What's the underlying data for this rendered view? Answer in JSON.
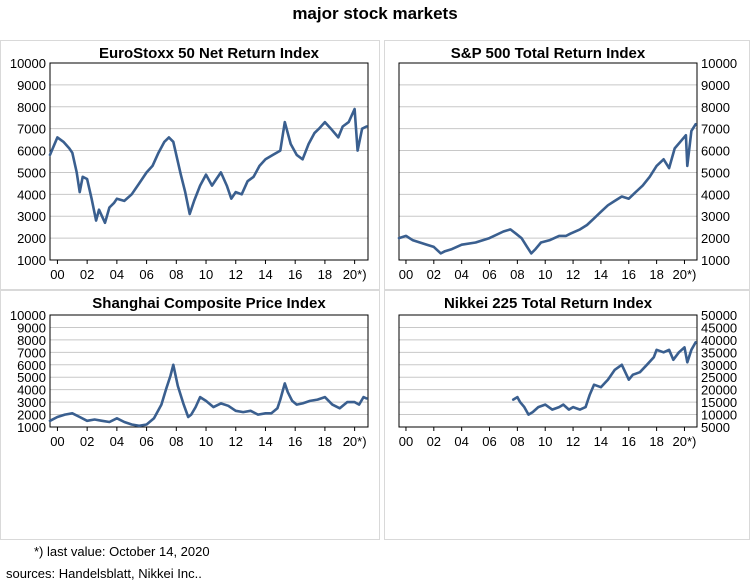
{
  "title": "major stock markets",
  "footnote": "*) last value: October 14, 2020",
  "sources": "sources: Handelsblatt, Nikkei Inc..",
  "line_color": "#3a5f8f",
  "chart_data": [
    {
      "type": "line",
      "title": "EuroStoxx 50 Net Return Index",
      "xlabel": "",
      "ylabel": "",
      "xlim": [
        1999.5,
        2020.9
      ],
      "ylim": [
        1000,
        10000
      ],
      "yticks": [
        1000,
        2000,
        3000,
        4000,
        5000,
        6000,
        7000,
        8000,
        9000,
        10000
      ],
      "xtick_labels": [
        "00",
        "02",
        "04",
        "06",
        "08",
        "10",
        "12",
        "14",
        "16",
        "18",
        "20*)"
      ],
      "xtick_values": [
        2000,
        2002,
        2004,
        2006,
        2008,
        2010,
        2012,
        2014,
        2016,
        2018,
        2020
      ],
      "y_axis_side": "left",
      "grid": true,
      "series": [
        {
          "x": [
            1999.5,
            2000.0,
            2000.4,
            2000.8,
            2001.0,
            2001.3,
            2001.5,
            2001.7,
            2002.0,
            2002.3,
            2002.6,
            2002.8,
            2003.2,
            2003.5,
            2003.8,
            2004.0,
            2004.5,
            2005.0,
            2005.5,
            2006.0,
            2006.4,
            2006.8,
            2007.2,
            2007.5,
            2007.8,
            2008.0,
            2008.3,
            2008.6,
            2008.9,
            2009.2,
            2009.6,
            2010.0,
            2010.4,
            2010.7,
            2011.0,
            2011.4,
            2011.7,
            2012.0,
            2012.4,
            2012.8,
            2013.2,
            2013.6,
            2014.0,
            2014.5,
            2015.0,
            2015.3,
            2015.7,
            2016.1,
            2016.5,
            2016.9,
            2017.3,
            2017.6,
            2018.0,
            2018.4,
            2018.9,
            2019.2,
            2019.6,
            2020.0,
            2020.2,
            2020.5,
            2020.8
          ],
          "y": [
            5800,
            6600,
            6400,
            6100,
            5900,
            5000,
            4100,
            4800,
            4700,
            3800,
            2800,
            3300,
            2700,
            3400,
            3600,
            3800,
            3700,
            4000,
            4500,
            5000,
            5300,
            5900,
            6400,
            6600,
            6400,
            5800,
            4900,
            4100,
            3100,
            3700,
            4400,
            4900,
            4400,
            4700,
            5000,
            4400,
            3800,
            4100,
            4000,
            4600,
            4800,
            5300,
            5600,
            5800,
            6000,
            7300,
            6300,
            5800,
            5600,
            6300,
            6800,
            7000,
            7300,
            7000,
            6600,
            7100,
            7300,
            7900,
            6000,
            7000,
            7100
          ]
        }
      ]
    },
    {
      "type": "line",
      "title": "S&P 500 Total Return Index",
      "xlabel": "",
      "ylabel": "",
      "xlim": [
        1999.5,
        2020.9
      ],
      "ylim": [
        1000,
        10000
      ],
      "yticks": [
        1000,
        2000,
        3000,
        4000,
        5000,
        6000,
        7000,
        8000,
        9000,
        10000
      ],
      "xtick_labels": [
        "00",
        "02",
        "04",
        "06",
        "08",
        "10",
        "12",
        "14",
        "16",
        "18",
        "20*)"
      ],
      "xtick_values": [
        2000,
        2002,
        2004,
        2006,
        2008,
        2010,
        2012,
        2014,
        2016,
        2018,
        2020
      ],
      "y_axis_side": "right",
      "grid": true,
      "series": [
        {
          "x": [
            1999.5,
            2000.0,
            2000.5,
            2001.0,
            2001.5,
            2002.0,
            2002.5,
            2002.8,
            2003.3,
            2004.0,
            2005.0,
            2006.0,
            2007.0,
            2007.5,
            2007.9,
            2008.3,
            2008.7,
            2009.0,
            2009.3,
            2009.7,
            2010.3,
            2011.0,
            2011.5,
            2011.8,
            2012.5,
            2013.0,
            2013.5,
            2014.0,
            2014.5,
            2015.0,
            2015.5,
            2016.0,
            2016.5,
            2017.0,
            2017.5,
            2018.0,
            2018.5,
            2018.9,
            2019.3,
            2019.7,
            2020.1,
            2020.2,
            2020.5,
            2020.8
          ],
          "y": [
            2000,
            2100,
            1900,
            1800,
            1700,
            1600,
            1300,
            1400,
            1500,
            1700,
            1800,
            2000,
            2300,
            2400,
            2200,
            2000,
            1600,
            1300,
            1500,
            1800,
            1900,
            2100,
            2100,
            2200,
            2400,
            2600,
            2900,
            3200,
            3500,
            3700,
            3900,
            3800,
            4100,
            4400,
            4800,
            5300,
            5600,
            5200,
            6100,
            6400,
            6700,
            5300,
            6900,
            7200
          ]
        }
      ]
    },
    {
      "type": "line",
      "title": "Shanghai Composite Price Index",
      "xlabel": "",
      "ylabel": "",
      "xlim": [
        1999.5,
        2020.9
      ],
      "ylim": [
        1000,
        10000
      ],
      "yticks": [
        1000,
        2000,
        3000,
        4000,
        5000,
        6000,
        7000,
        8000,
        9000,
        10000
      ],
      "xtick_labels": [
        "00",
        "02",
        "04",
        "06",
        "08",
        "10",
        "12",
        "14",
        "16",
        "18",
        "20*)"
      ],
      "xtick_values": [
        2000,
        2002,
        2004,
        2006,
        2008,
        2010,
        2012,
        2014,
        2016,
        2018,
        2020
      ],
      "y_axis_side": "left",
      "grid": true,
      "series": [
        {
          "x": [
            1999.5,
            2000.0,
            2000.5,
            2001.0,
            2001.5,
            2002.0,
            2002.5,
            2003.0,
            2003.5,
            2004.0,
            2004.5,
            2005.0,
            2005.5,
            2006.0,
            2006.5,
            2007.0,
            2007.3,
            2007.6,
            2007.8,
            2008.1,
            2008.5,
            2008.8,
            2009.0,
            2009.3,
            2009.6,
            2010.0,
            2010.5,
            2011.0,
            2011.5,
            2012.0,
            2012.5,
            2013.0,
            2013.5,
            2014.0,
            2014.4,
            2014.8,
            2015.0,
            2015.3,
            2015.5,
            2015.8,
            2016.1,
            2016.5,
            2017.0,
            2017.5,
            2018.0,
            2018.5,
            2019.0,
            2019.5,
            2020.0,
            2020.3,
            2020.6,
            2020.8
          ],
          "y": [
            1500,
            1800,
            2000,
            2100,
            1800,
            1500,
            1600,
            1500,
            1400,
            1700,
            1400,
            1200,
            1100,
            1200,
            1700,
            2800,
            4000,
            5100,
            6000,
            4300,
            2800,
            1800,
            2000,
            2600,
            3400,
            3100,
            2600,
            2900,
            2700,
            2300,
            2200,
            2300,
            2000,
            2100,
            2100,
            2500,
            3200,
            4500,
            3800,
            3100,
            2800,
            2900,
            3100,
            3200,
            3400,
            2800,
            2500,
            3000,
            3000,
            2800,
            3400,
            3300
          ]
        }
      ]
    },
    {
      "type": "line",
      "title": "Nikkei 225 Total Return Index",
      "xlabel": "",
      "ylabel": "",
      "xlim": [
        1999.5,
        2020.9
      ],
      "ylim": [
        5000,
        50000
      ],
      "yticks": [
        5000,
        10000,
        15000,
        20000,
        25000,
        30000,
        35000,
        40000,
        45000,
        50000
      ],
      "xtick_labels": [
        "00",
        "02",
        "04",
        "06",
        "08",
        "10",
        "12",
        "14",
        "16",
        "18",
        "20*)"
      ],
      "xtick_values": [
        2000,
        2002,
        2004,
        2006,
        2008,
        2010,
        2012,
        2014,
        2016,
        2018,
        2020
      ],
      "y_axis_side": "right",
      "grid": true,
      "series": [
        {
          "x": [
            2007.7,
            2008.0,
            2008.2,
            2008.5,
            2008.8,
            2009.1,
            2009.5,
            2010.0,
            2010.5,
            2011.0,
            2011.3,
            2011.7,
            2012.0,
            2012.5,
            2012.9,
            2013.2,
            2013.5,
            2014.0,
            2014.5,
            2015.0,
            2015.5,
            2016.0,
            2016.3,
            2016.8,
            2017.3,
            2017.8,
            2018.0,
            2018.5,
            2018.9,
            2019.2,
            2019.6,
            2020.0,
            2020.2,
            2020.5,
            2020.8
          ],
          "y": [
            16000,
            17000,
            15000,
            13000,
            10000,
            11000,
            13000,
            14000,
            12000,
            13000,
            14000,
            12000,
            13000,
            12000,
            13000,
            18000,
            22000,
            21000,
            24000,
            28000,
            30000,
            24000,
            26000,
            27000,
            30000,
            33000,
            36000,
            35000,
            36000,
            32000,
            35000,
            37000,
            31000,
            36000,
            39000
          ]
        }
      ]
    }
  ]
}
